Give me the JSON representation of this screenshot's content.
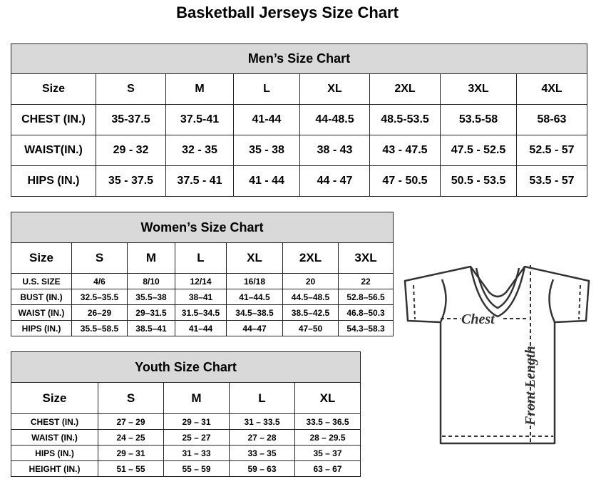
{
  "title": "Basketball Jerseys Size Chart",
  "mens": {
    "heading": "Men’s Size Chart",
    "sizes": [
      "Size",
      "S",
      "M",
      "L",
      "XL",
      "2XL",
      "3XL",
      "4XL"
    ],
    "rows": [
      [
        "CHEST (IN.)",
        "35-37.5",
        "37.5-41",
        "41-44",
        "44-48.5",
        "48.5-53.5",
        "53.5-58",
        "58-63"
      ],
      [
        "WAIST(IN.)",
        "29 - 32",
        "32 - 35",
        "35 - 38",
        "38 - 43",
        "43 - 47.5",
        "47.5 - 52.5",
        "52.5 - 57"
      ],
      [
        "HIPS (IN.)",
        "35 - 37.5",
        "37.5 - 41",
        "41 - 44",
        "44 - 47",
        "47 - 50.5",
        "50.5 - 53.5",
        "53.5 - 57"
      ]
    ]
  },
  "womens": {
    "heading": "Women’s Size Chart",
    "sizes": [
      "Size",
      "S",
      "M",
      "L",
      "XL",
      "2XL",
      "3XL"
    ],
    "rows": [
      [
        "U.S.  SIZE",
        "4/6",
        "8/10",
        "12/14",
        "16/18",
        "20",
        "22"
      ],
      [
        "BUST  (IN.)",
        "32.5–35.5",
        "35.5–38",
        "38–41",
        "41–44.5",
        "44.5–48.5",
        "52.8–56.5"
      ],
      [
        "WAIST  (IN.)",
        "26–29",
        "29–31.5",
        "31.5–34.5",
        "34.5–38.5",
        "38.5–42.5",
        "46.8–50.3"
      ],
      [
        "HIPS  (IN.)",
        "35.5–58.5",
        "38.5–41",
        "41–44",
        "44–47",
        "47–50",
        "54.3–58.3"
      ]
    ]
  },
  "youth": {
    "heading": "Youth Size Chart",
    "sizes": [
      "Size",
      "S",
      "M",
      "L",
      "XL"
    ],
    "rows": [
      [
        "CHEST  (IN.)",
        "27  –  29",
        "29  –  31",
        "31  –  33.5",
        "33.5  –  36.5"
      ],
      [
        "WAIST  (IN.)",
        "24  –  25",
        "25  –  27",
        "27  –  28",
        "28  –  29.5"
      ],
      [
        "HIPS  (IN.)",
        "29  –  31",
        "31  –  33",
        "33  –  35",
        "35  –  37"
      ],
      [
        "HEIGHT  (IN.)",
        "51  –  55",
        "55  –  59",
        "59  –  63",
        "63  –  67"
      ]
    ]
  },
  "diagram": {
    "chest_label": "Chest",
    "length_label": "Front Length"
  },
  "colors": {
    "header_bg": "#d9d9d9",
    "border": "#222222"
  }
}
